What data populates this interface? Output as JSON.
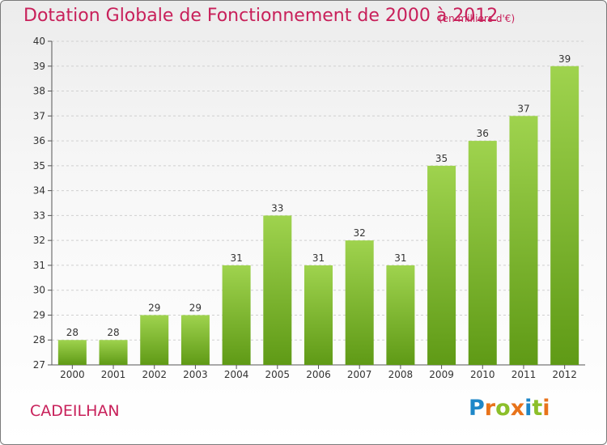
{
  "header": {
    "title": "Dotation Globale de Fonctionnement de 2000 à 2012",
    "unit_note": "(en milliers d'€)"
  },
  "footer": {
    "commune": "CADEILHAN",
    "logo_text": "Proxiti"
  },
  "colors": {
    "title": "#c8205a",
    "bar_top": "#9fd34e",
    "bar_bottom": "#5f9a16",
    "grid": "#d0d0d0"
  },
  "chart_data": {
    "type": "bar",
    "title": "Dotation Globale de Fonctionnement de 2000 à 2012",
    "subtitle": "(en milliers d'€)",
    "xlabel": "",
    "ylabel": "",
    "categories": [
      "2000",
      "2001",
      "2002",
      "2003",
      "2004",
      "2005",
      "2006",
      "2007",
      "2008",
      "2009",
      "2010",
      "2011",
      "2012"
    ],
    "values": [
      28,
      28,
      29,
      29,
      31,
      33,
      31,
      32,
      31,
      35,
      36,
      37,
      39
    ],
    "ylim": [
      27,
      40
    ],
    "yticks": [
      27,
      28,
      29,
      30,
      31,
      32,
      33,
      34,
      35,
      36,
      37,
      38,
      39,
      40
    ],
    "grid": "horizontal dashed",
    "legend": "none",
    "data_labels": true
  }
}
